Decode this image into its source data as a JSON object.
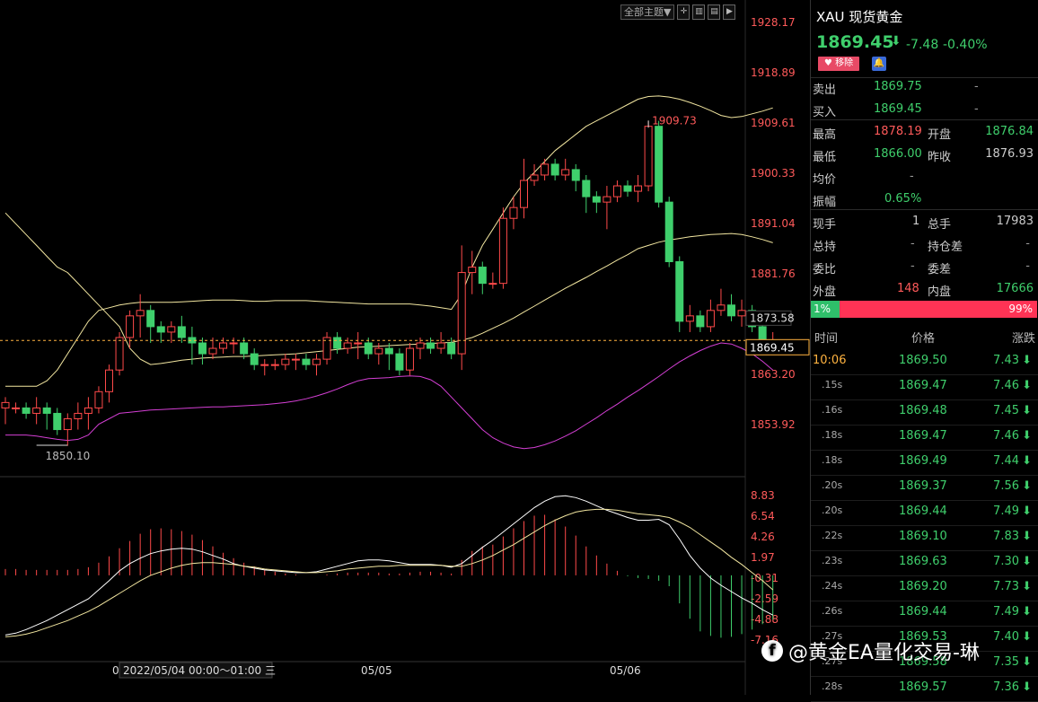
{
  "toolbar": {
    "theme_label": "全部主题▼",
    "icons": [
      "crosshair-icon",
      "layout-icon",
      "layout-alt-icon",
      "expand-icon"
    ]
  },
  "price_axis": [
    "1928.17",
    "1918.89",
    "1909.61",
    "1900.33",
    "1891.04",
    "1881.76",
    "1863.20",
    "1853.92"
  ],
  "price_tags": {
    "upper": "1873.58",
    "current": "1869.45"
  },
  "annotations": {
    "high": "1909.73",
    "low": "1850.10"
  },
  "macd_axis": [
    "8.83",
    "6.54",
    "4.26",
    "1.97",
    "-0.31",
    "-2.59",
    "-4.88",
    "-7.16"
  ],
  "time_axis": {
    "crosshair": "0",
    "cursor_label": "2022/05/04 00:00～01:00 三",
    "d1": "05/05",
    "d2": "05/06"
  },
  "quote": {
    "symbol": "XAU",
    "name": "现货黄金",
    "price": "1869.45",
    "change": "-7.48",
    "change_pct": "-0.40%",
    "remove_label": "移除",
    "sell_label": "卖出",
    "sell_value": "1869.75",
    "sell_dash": "-",
    "buy_label": "买入",
    "buy_value": "1869.45",
    "buy_dash": "-",
    "high_label": "最高",
    "high_value": "1878.19",
    "open_label": "开盘",
    "open_value": "1876.84",
    "low_label": "最低",
    "low_value": "1866.00",
    "prev_label": "昨收",
    "prev_value": "1876.93",
    "avg_label": "均价",
    "avg_value": "-",
    "amp_label": "振幅",
    "amp_value": "0.65%",
    "cur_vol_label": "现手",
    "cur_vol_value": "1",
    "total_vol_label": "总手",
    "total_vol_value": "17983",
    "total_hold_label": "总持",
    "total_hold_value": "-",
    "hold_diff_label": "持仓差",
    "hold_diff_value": "-",
    "ratio_label": "委比",
    "ratio_value": "-",
    "diff_label": "委差",
    "diff_value": "-",
    "outer_label": "外盘",
    "outer_value": "148",
    "inner_label": "内盘",
    "inner_value": "17666",
    "buy_pct": "1%",
    "sell_pct": "99%"
  },
  "ticks_header": {
    "time": "时间",
    "price": "价格",
    "change": "涨跌"
  },
  "ticks": [
    {
      "time": "10:06",
      "price": "1869.50",
      "change": "7.43"
    },
    {
      "time": ".15s",
      "price": "1869.47",
      "change": "7.46"
    },
    {
      "time": ".16s",
      "price": "1869.48",
      "change": "7.45"
    },
    {
      "time": ".18s",
      "price": "1869.47",
      "change": "7.46"
    },
    {
      "time": ".18s",
      "price": "1869.49",
      "change": "7.44"
    },
    {
      "time": ".20s",
      "price": "1869.37",
      "change": "7.56"
    },
    {
      "time": ".20s",
      "price": "1869.44",
      "change": "7.49"
    },
    {
      "time": ".22s",
      "price": "1869.10",
      "change": "7.83"
    },
    {
      "time": ".23s",
      "price": "1869.63",
      "change": "7.30"
    },
    {
      "time": ".24s",
      "price": "1869.20",
      "change": "7.73"
    },
    {
      "time": ".26s",
      "price": "1869.44",
      "change": "7.49"
    },
    {
      "time": ".27s",
      "price": "1869.53",
      "change": "7.40"
    },
    {
      "time": ".27s",
      "price": "1869.58",
      "change": "7.35"
    },
    {
      "time": ".28s",
      "price": "1869.57",
      "change": "7.36"
    }
  ],
  "watermark": "@黄金EA量化交易-琳",
  "colors": {
    "up": "#ff4a4a",
    "down": "#3fcf6c",
    "ma": "#f2e6a0",
    "lower_band": "#d43fd4",
    "label_red": "#ff5a5a",
    "cursor": "#ffb340"
  },
  "chart_data": {
    "type": "candlestick",
    "ylim": [
      1848,
      1930
    ],
    "candles": [
      [
        1857,
        1858,
        1854,
        1859
      ],
      [
        1857,
        1857,
        1856,
        1858
      ],
      [
        1857,
        1856,
        1855,
        1858
      ],
      [
        1856,
        1857,
        1854,
        1859
      ],
      [
        1857,
        1856,
        1853,
        1858
      ],
      [
        1856,
        1853,
        1852,
        1857
      ],
      [
        1853,
        1855,
        1850,
        1856
      ],
      [
        1855,
        1856,
        1853,
        1858
      ],
      [
        1856,
        1857,
        1853,
        1859
      ],
      [
        1857,
        1860,
        1856,
        1861
      ],
      [
        1860,
        1864,
        1858,
        1865
      ],
      [
        1864,
        1870,
        1863,
        1871
      ],
      [
        1870,
        1874,
        1868,
        1875
      ],
      [
        1874,
        1875,
        1870,
        1878
      ],
      [
        1875,
        1872,
        1869,
        1876
      ],
      [
        1872,
        1871,
        1869,
        1873
      ],
      [
        1871,
        1872,
        1869,
        1873
      ],
      [
        1872,
        1870,
        1869,
        1874
      ],
      [
        1870,
        1869,
        1865,
        1872
      ],
      [
        1869,
        1867,
        1865,
        1870
      ],
      [
        1867,
        1868,
        1866,
        1870
      ],
      [
        1868,
        1869,
        1867,
        1870
      ],
      [
        1869,
        1869,
        1867,
        1870
      ],
      [
        1869,
        1867,
        1866,
        1870
      ],
      [
        1867,
        1865,
        1864,
        1868
      ],
      [
        1865,
        1865,
        1863,
        1866
      ],
      [
        1865,
        1865,
        1864,
        1866
      ],
      [
        1865,
        1866,
        1864,
        1867
      ],
      [
        1866,
        1866,
        1864,
        1867
      ],
      [
        1866,
        1865,
        1864,
        1867
      ],
      [
        1865,
        1866,
        1863,
        1867
      ],
      [
        1866,
        1870,
        1865,
        1871
      ],
      [
        1870,
        1868,
        1867,
        1871
      ],
      [
        1868,
        1869,
        1867,
        1870
      ],
      [
        1869,
        1869,
        1866,
        1871
      ],
      [
        1869,
        1867,
        1866,
        1870
      ],
      [
        1867,
        1868,
        1865,
        1869
      ],
      [
        1868,
        1867,
        1864,
        1869
      ],
      [
        1867,
        1864,
        1863,
        1868
      ],
      [
        1864,
        1868,
        1863,
        1869
      ],
      [
        1868,
        1869,
        1866,
        1870
      ],
      [
        1869,
        1868,
        1867,
        1870
      ],
      [
        1868,
        1869,
        1867,
        1871
      ],
      [
        1869,
        1867,
        1866,
        1870
      ],
      [
        1867,
        1882,
        1864,
        1887
      ],
      [
        1882,
        1883,
        1878,
        1886
      ],
      [
        1883,
        1880,
        1878,
        1884
      ],
      [
        1880,
        1880,
        1879,
        1882
      ],
      [
        1880,
        1892,
        1879,
        1894
      ],
      [
        1892,
        1894,
        1890,
        1896
      ],
      [
        1894,
        1899,
        1892,
        1903
      ],
      [
        1899,
        1900,
        1898,
        1902
      ],
      [
        1900,
        1902,
        1899,
        1903
      ],
      [
        1902,
        1900,
        1899,
        1903
      ],
      [
        1900,
        1901,
        1899,
        1903
      ],
      [
        1901,
        1899,
        1897,
        1902
      ],
      [
        1899,
        1896,
        1893,
        1900
      ],
      [
        1896,
        1895,
        1893,
        1897
      ],
      [
        1895,
        1896,
        1890,
        1898
      ],
      [
        1896,
        1898,
        1895,
        1899
      ],
      [
        1898,
        1897,
        1896,
        1899
      ],
      [
        1897,
        1898,
        1895,
        1900
      ],
      [
        1898,
        1909,
        1897,
        1910
      ],
      [
        1909,
        1895,
        1894,
        1910
      ],
      [
        1895,
        1884,
        1883,
        1896
      ],
      [
        1884,
        1873,
        1871,
        1885
      ],
      [
        1873,
        1874,
        1871,
        1876
      ],
      [
        1874,
        1872,
        1871,
        1875
      ],
      [
        1872,
        1875,
        1871,
        1877
      ],
      [
        1875,
        1876,
        1874,
        1879
      ],
      [
        1876,
        1874,
        1873,
        1878
      ],
      [
        1874,
        1875,
        1872,
        1877
      ],
      [
        1875,
        1872,
        1871,
        1876
      ],
      [
        1872,
        1869,
        1867,
        1873
      ],
      [
        1869,
        1869,
        1868,
        1871
      ]
    ],
    "ma": [
      1893,
      1891,
      1889,
      1887,
      1885,
      1883,
      1882,
      1880,
      1878,
      1876,
      1874,
      1872,
      1868,
      1866,
      1865,
      1865.2,
      1865.5,
      1865.8,
      1866,
      1866.2,
      1866.3,
      1866.4,
      1866.5,
      1866.5,
      1866.6,
      1866.7,
      1866.8,
      1866.9,
      1867,
      1867.2,
      1867.4,
      1867.6,
      1867.8,
      1868,
      1868.2,
      1868.3,
      1868.4,
      1868.5,
      1868.6,
      1868.7,
      1868.8,
      1868.9,
      1869,
      1869.1,
      1869.5,
      1870,
      1870.8,
      1871.7,
      1872.6,
      1873.6,
      1874.7,
      1875.8,
      1876.9,
      1878,
      1879.1,
      1880.1,
      1881.1,
      1882.2,
      1883.2,
      1884.3,
      1885.3,
      1886.4,
      1887,
      1887.6,
      1888,
      1888.3,
      1888.6,
      1888.8,
      1889,
      1889.1,
      1889.2,
      1889,
      1888.6,
      1888.1,
      1887.5
    ],
    "upper": [
      1861,
      1861,
      1861,
      1861,
      1862,
      1864,
      1867,
      1870,
      1873,
      1875,
      1875.5,
      1876,
      1876.3,
      1876.5,
      1876.5,
      1876.5,
      1876.5,
      1876.6,
      1876.7,
      1876.8,
      1876.9,
      1876.9,
      1876.9,
      1876.8,
      1876.7,
      1876.7,
      1876.8,
      1876.8,
      1876.8,
      1876.8,
      1876.7,
      1876.6,
      1876.5,
      1876.4,
      1876.3,
      1876.2,
      1876.2,
      1876.2,
      1876.2,
      1876.2,
      1876,
      1875.8,
      1875.5,
      1875.2,
      1878,
      1883,
      1887,
      1890,
      1893,
      1896,
      1898.5,
      1900.5,
      1902.5,
      1904.5,
      1906,
      1907.5,
      1909,
      1910,
      1911,
      1912,
      1913,
      1914,
      1914.5,
      1914.6,
      1914.4,
      1914,
      1913.4,
      1912.7,
      1911.9,
      1911,
      1910.6,
      1910.8,
      1911.3,
      1911.8,
      1912.4
    ],
    "lower": [
      1852,
      1852,
      1852,
      1851.8,
      1851.5,
      1851.2,
      1851,
      1851.2,
      1852,
      1854,
      1855,
      1856,
      1856.2,
      1856.4,
      1856.6,
      1856.7,
      1856.8,
      1856.9,
      1857,
      1857.1,
      1857.2,
      1857.2,
      1857.3,
      1857.4,
      1857.5,
      1857.6,
      1857.8,
      1858,
      1858.3,
      1858.7,
      1859.2,
      1859.8,
      1860.5,
      1861.3,
      1862,
      1862.4,
      1862.5,
      1862.6,
      1862.8,
      1862.9,
      1862.8,
      1862.2,
      1861,
      1859,
      1857,
      1855,
      1853,
      1851.5,
      1850.5,
      1849.8,
      1849.5,
      1849.7,
      1850.2,
      1850.9,
      1851.8,
      1852.8,
      1854,
      1855.2,
      1856.5,
      1857.7,
      1859,
      1860.2,
      1861.5,
      1862.8,
      1864.2,
      1865.5,
      1866.6,
      1867.6,
      1868.4,
      1869,
      1868.8,
      1868,
      1867,
      1865.6,
      1864
    ],
    "macd_ylim": [
      -7.8,
      9.5
    ],
    "macd_hist": [
      0.7,
      0.7,
      0.6,
      0.6,
      0.6,
      0.6,
      0.6,
      0.7,
      0.9,
      1.4,
      2.1,
      3.0,
      3.8,
      4.6,
      5.1,
      5.2,
      5.1,
      4.9,
      4.5,
      3.9,
      3.2,
      2.5,
      1.9,
      1.4,
      1.0,
      0.6,
      0.4,
      0.2,
      0.1,
      0.0,
      0.0,
      0.1,
      0.2,
      0.3,
      0.3,
      0.3,
      0.3,
      0.2,
      0.2,
      0.3,
      0.4,
      0.4,
      0.3,
      0.2,
      1.7,
      2.7,
      3.2,
      3.4,
      4.3,
      5.2,
      6.0,
      6.6,
      6.7,
      6.2,
      5.4,
      4.4,
      3.2,
      2.2,
      1.3,
      0.5,
      -0.1,
      -0.3,
      -0.4,
      -0.6,
      -1.2,
      -3.1,
      -4.8,
      -6.2,
      -6.7,
      -6.9,
      -6.8,
      -6.5,
      -6.0,
      -5.4,
      -4.9
    ],
    "macd_dif": [
      -6.6,
      -6.4,
      -6.0,
      -5.5,
      -5.0,
      -4.4,
      -3.8,
      -3.2,
      -2.6,
      -1.6,
      -0.6,
      0.5,
      1.3,
      1.9,
      2.4,
      2.7,
      2.9,
      3.0,
      2.9,
      2.6,
      2.2,
      1.8,
      1.3,
      1.0,
      0.8,
      0.6,
      0.5,
      0.4,
      0.3,
      0.3,
      0.4,
      0.7,
      1.0,
      1.3,
      1.6,
      1.7,
      1.7,
      1.6,
      1.4,
      1.2,
      1.2,
      1.2,
      1.1,
      0.9,
      1.3,
      2.2,
      3.1,
      3.9,
      4.8,
      5.7,
      6.6,
      7.5,
      8.2,
      8.7,
      8.8,
      8.6,
      8.2,
      7.7,
      7.2,
      6.8,
      6.4,
      6.1,
      6.1,
      6.2,
      5.6,
      4.0,
      2.2,
      0.8,
      -0.3,
      -1.1,
      -1.8,
      -2.5,
      -3.1,
      -3.8,
      -4.4
    ],
    "macd_dea": [
      -6.8,
      -6.7,
      -6.5,
      -6.2,
      -5.8,
      -5.4,
      -5.0,
      -4.5,
      -4.0,
      -3.4,
      -2.7,
      -2.0,
      -1.3,
      -0.6,
      0.0,
      0.4,
      0.8,
      1.1,
      1.3,
      1.4,
      1.4,
      1.3,
      1.2,
      1.0,
      0.9,
      0.7,
      0.6,
      0.5,
      0.4,
      0.3,
      0.3,
      0.4,
      0.5,
      0.7,
      0.8,
      0.9,
      1.0,
      1.0,
      1.1,
      1.1,
      1.1,
      1.1,
      1.1,
      1.0,
      1.0,
      1.3,
      1.7,
      2.2,
      2.8,
      3.4,
      4.1,
      4.8,
      5.5,
      6.1,
      6.6,
      7.0,
      7.2,
      7.3,
      7.3,
      7.2,
      7.0,
      6.8,
      6.7,
      6.6,
      6.4,
      5.9,
      5.3,
      4.5,
      3.7,
      2.9,
      2.0,
      1.2,
      0.3,
      -0.6,
      -1.6
    ]
  }
}
